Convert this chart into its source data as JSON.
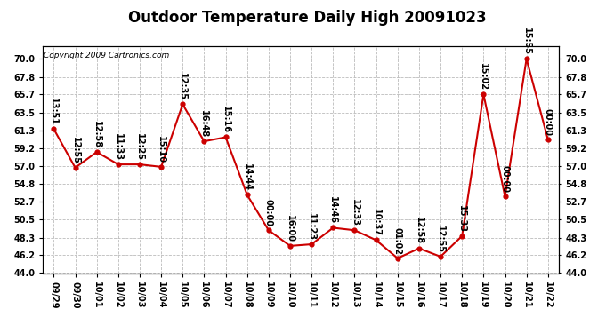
{
  "title": "Outdoor Temperature Daily High 20091023",
  "copyright": "Copyright 2009 Cartronics.com",
  "dates": [
    "09/29",
    "09/30",
    "10/01",
    "10/02",
    "10/03",
    "10/04",
    "10/05",
    "10/06",
    "10/07",
    "10/08",
    "10/09",
    "10/10",
    "10/11",
    "10/12",
    "10/13",
    "10/14",
    "10/15",
    "10/16",
    "10/17",
    "10/18",
    "10/19",
    "10/20",
    "10/21",
    "10/22"
  ],
  "values": [
    61.5,
    56.8,
    58.7,
    57.2,
    57.2,
    56.9,
    64.5,
    60.0,
    60.5,
    53.5,
    49.2,
    47.3,
    47.5,
    49.5,
    49.2,
    48.0,
    45.8,
    47.0,
    46.0,
    48.5,
    65.7,
    53.3,
    70.0,
    60.2
  ],
  "times": [
    "13:51",
    "12:55",
    "12:58",
    "11:33",
    "12:25",
    "15:10",
    "12:35",
    "16:48",
    "15:16",
    "14:44",
    "00:00",
    "16:00",
    "11:23",
    "14:46",
    "12:33",
    "10:37",
    "01:02",
    "12:58",
    "12:55",
    "15:33",
    "15:02",
    "00:00",
    "15:55",
    "00:00"
  ],
  "line_color": "#cc0000",
  "marker_color": "#cc0000",
  "bg_color": "#ffffff",
  "grid_color": "#bbbbbb",
  "ylim_min": 44.0,
  "ylim_max": 71.5,
  "yticks": [
    44.0,
    46.2,
    48.3,
    50.5,
    52.7,
    54.8,
    57.0,
    59.2,
    61.3,
    63.5,
    65.7,
    67.8,
    70.0
  ],
  "title_fontsize": 12,
  "label_fontsize": 7,
  "copyright_fontsize": 6.5,
  "annotation_fontsize": 7
}
